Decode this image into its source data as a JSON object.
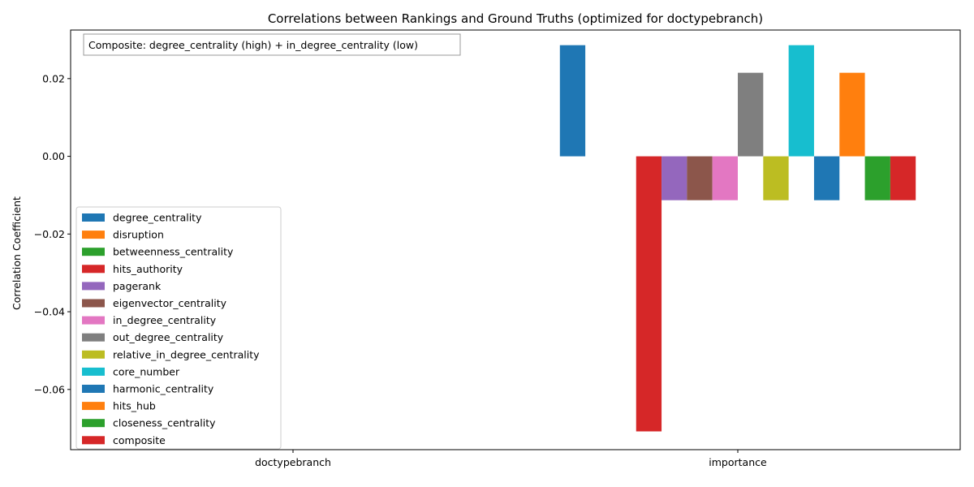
{
  "chart_data": {
    "type": "bar",
    "title": "Correlations between Rankings and Ground Truths (optimized for doctypebranch)",
    "xlabel": "",
    "ylabel": "Correlation Coefficient",
    "categories": [
      "doctypebranch",
      "importance"
    ],
    "ylim": [
      -0.0755,
      0.0325
    ],
    "yticks": [
      0.02,
      0.0,
      -0.02,
      -0.04,
      -0.06
    ],
    "ytick_labels": [
      "0.02",
      "0.00",
      "−0.02",
      "−0.04",
      "−0.06"
    ],
    "annotation": "Composite: degree_centrality (high) + in_degree_centrality (low)",
    "legend_position": "lower-left",
    "grid": false,
    "series": [
      {
        "name": "degree_centrality",
        "color": "#1f77b4",
        "values": [
          null,
          0.0286
        ]
      },
      {
        "name": "disruption",
        "color": "#ff7f0e",
        "values": [
          null,
          0.0
        ]
      },
      {
        "name": "betweenness_centrality",
        "color": "#2ca02c",
        "values": [
          null,
          0.0
        ]
      },
      {
        "name": "hits_authority",
        "color": "#d62728",
        "values": [
          null,
          -0.0708
        ]
      },
      {
        "name": "pagerank",
        "color": "#9467bd",
        "values": [
          null,
          -0.0113
        ]
      },
      {
        "name": "eigenvector_centrality",
        "color": "#8c564b",
        "values": [
          null,
          -0.0113
        ]
      },
      {
        "name": "in_degree_centrality",
        "color": "#e377c2",
        "values": [
          null,
          -0.0113
        ]
      },
      {
        "name": "out_degree_centrality",
        "color": "#7f7f7f",
        "values": [
          null,
          0.0215
        ]
      },
      {
        "name": "relative_in_degree_centrality",
        "color": "#bcbd22",
        "values": [
          null,
          -0.0113
        ]
      },
      {
        "name": "core_number",
        "color": "#17becf",
        "values": [
          null,
          0.0286
        ]
      },
      {
        "name": "harmonic_centrality",
        "color": "#1f77b4",
        "values": [
          null,
          -0.0113
        ]
      },
      {
        "name": "hits_hub",
        "color": "#ff7f0e",
        "values": [
          null,
          0.0215
        ]
      },
      {
        "name": "closeness_centrality",
        "color": "#2ca02c",
        "values": [
          null,
          -0.0113
        ]
      },
      {
        "name": "composite",
        "color": "#d62728",
        "values": [
          null,
          -0.0113
        ]
      }
    ]
  }
}
